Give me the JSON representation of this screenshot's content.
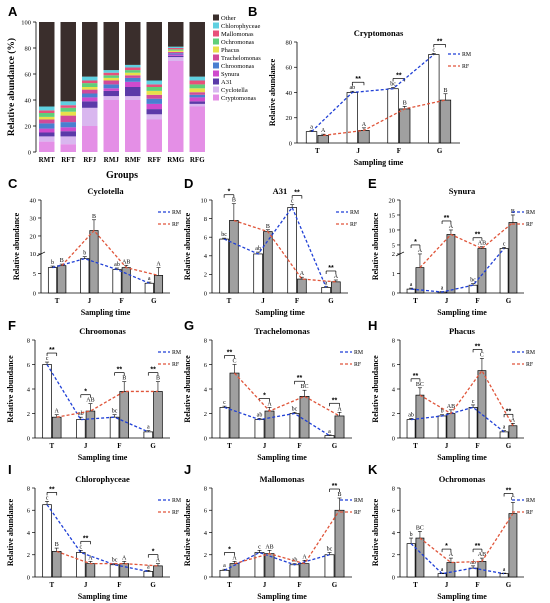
{
  "colors": {
    "rm": "#1f3fd6",
    "rf": "#e0553a",
    "bar_rm": "#ffffff",
    "bar_rf": "#a0a0a0"
  },
  "legend_small": [
    "RM",
    "RF"
  ],
  "chart_data": [
    {
      "panel": "A",
      "type": "bar",
      "stacked": true,
      "categories": [
        "RMT",
        "RFT",
        "RFJ",
        "RMJ",
        "RMF",
        "RFF",
        "RMG",
        "RFG"
      ],
      "xlabel": "Groups",
      "ylabel": "Relative abundance (%)",
      "ylim": [
        0,
        100
      ],
      "yticks": [
        0,
        20,
        40,
        60,
        80,
        100
      ],
      "series": [
        {
          "name": "Cryptomonas",
          "color": "#e48fe6",
          "values": [
            8,
            6,
            20,
            40,
            40,
            25,
            70,
            35
          ]
        },
        {
          "name": "Cyclotella",
          "color": "#d9b7ef",
          "values": [
            4,
            6,
            14,
            3,
            3,
            4,
            3,
            2
          ]
        },
        {
          "name": "A31",
          "color": "#5b3aa8",
          "values": [
            3,
            4,
            5,
            4,
            7,
            4,
            1,
            2
          ]
        },
        {
          "name": "Synura",
          "color": "#cf4acd",
          "values": [
            3,
            3,
            3,
            2,
            4,
            4,
            1,
            3
          ]
        },
        {
          "name": "Chroomonas",
          "color": "#4a7fd0",
          "values": [
            4,
            4,
            3,
            3,
            3,
            4,
            1,
            2
          ]
        },
        {
          "name": "Trachelomonas",
          "color": "#d04a9a",
          "values": [
            3,
            5,
            3,
            3,
            2,
            3,
            1,
            2
          ]
        },
        {
          "name": "Phacus",
          "color": "#e8e04a",
          "values": [
            2,
            3,
            2,
            2,
            2,
            3,
            1,
            3
          ]
        },
        {
          "name": "Ochromonas",
          "color": "#5fcf7a",
          "values": [
            3,
            3,
            3,
            2,
            2,
            3,
            1,
            3
          ]
        },
        {
          "name": "Mallomonas",
          "color": "#e8507a",
          "values": [
            2,
            2,
            2,
            2,
            2,
            2,
            1,
            3
          ]
        },
        {
          "name": "Chlorophyceae",
          "color": "#5fd0e0",
          "values": [
            3,
            3,
            3,
            2,
            2,
            3,
            1,
            3
          ]
        },
        {
          "name": "Other",
          "color": "#3a2e2c",
          "values": [
            65,
            61,
            42,
            37,
            33,
            45,
            19,
            42
          ]
        }
      ]
    },
    {
      "panel": "B",
      "type": "bar",
      "title": "Cryptomonas",
      "categories": [
        "T",
        "J",
        "F",
        "G"
      ],
      "xlabel": "Sampling time",
      "ylabel": "Relative abundance",
      "ylim": [
        0,
        80
      ],
      "yticks": [
        0,
        20,
        40,
        60,
        80
      ],
      "series": [
        {
          "name": "RM",
          "values": [
            9,
            40,
            43,
            70
          ],
          "err": [
            1,
            1,
            1,
            1
          ]
        },
        {
          "name": "RF",
          "values": [
            6,
            10,
            27,
            34
          ],
          "err": [
            1,
            2,
            2,
            5
          ]
        }
      ],
      "letters_rm": [
        "a",
        "ab",
        "bc",
        "c"
      ],
      "letters_rf": [
        "A",
        "A",
        "B",
        "B"
      ],
      "sig": [
        "",
        "**",
        "**",
        "**"
      ],
      "sig_over_rm": false
    },
    {
      "panel": "C",
      "type": "bar",
      "title": "Cyclotella",
      "categories": [
        "T",
        "J",
        "F",
        "G"
      ],
      "xlabel": "Sampling time",
      "ylabel": "Relative abundance",
      "ylim": [
        0,
        40
      ],
      "yticks": [
        0,
        10,
        20,
        30,
        40
      ],
      "broken_axis": true,
      "ylim_low": [
        0,
        10
      ],
      "yticks_low": [
        0,
        5,
        10
      ],
      "ylim_high": [
        10,
        40
      ],
      "yticks_high": [
        20,
        30,
        40
      ],
      "series": [
        {
          "name": "RM",
          "values": [
            6.5,
            8.8,
            6,
            2.5
          ],
          "err": [
            0.4,
            0.5,
            0.4,
            0.3
          ]
        },
        {
          "name": "RF",
          "values": [
            7,
            23,
            6.5,
            4.5
          ],
          "err": [
            0.4,
            6,
            0.6,
            2
          ]
        }
      ],
      "letters_rm": [
        "b",
        "b",
        "ab",
        "a"
      ],
      "letters_rf": [
        "B",
        "B",
        "AB",
        "A"
      ],
      "sig": [
        "",
        "",
        "",
        ""
      ],
      "sig_over_rm": false
    },
    {
      "panel": "D",
      "type": "bar",
      "title": "A31",
      "categories": [
        "T",
        "J",
        "F",
        "G"
      ],
      "xlabel": "Sampling time",
      "ylabel": "Relative abundance",
      "ylim": [
        0,
        10
      ],
      "yticks": [
        0,
        2,
        4,
        6,
        8,
        10
      ],
      "series": [
        {
          "name": "RM",
          "values": [
            5.8,
            4.2,
            9.2,
            0.6
          ],
          "err": [
            0.1,
            0.2,
            0.3,
            0.1
          ]
        },
        {
          "name": "RF",
          "values": [
            7.8,
            6.6,
            1.5,
            1.2
          ],
          "err": [
            1.8,
            0.2,
            0.2,
            0.2
          ]
        }
      ],
      "letters_rm": [
        "bc",
        "ab",
        "c",
        "a"
      ],
      "letters_rf": [
        "B",
        "B",
        "A",
        "A"
      ],
      "sig": [
        "*",
        "",
        "**",
        "**"
      ],
      "sig_over_rm": false
    },
    {
      "panel": "E",
      "type": "bar",
      "title": "Synura",
      "categories": [
        "T",
        "J",
        "F",
        "G"
      ],
      "xlabel": "Sampling time",
      "ylabel": "Relative abundance",
      "ylim": [
        0,
        20
      ],
      "yticks": [
        0,
        5,
        10,
        15,
        20
      ],
      "broken_axis": true,
      "ylim_low": [
        0,
        2
      ],
      "yticks_low": [
        0,
        1,
        2
      ],
      "ylim_high": [
        2,
        20
      ],
      "yticks_high": [
        5,
        10,
        15,
        20
      ],
      "series": [
        {
          "name": "RM",
          "values": [
            0.2,
            0.05,
            0.4,
            3.8
          ],
          "err": [
            0.05,
            0.02,
            0.08,
            0.4
          ]
        },
        {
          "name": "RF",
          "values": [
            1.3,
            8.5,
            3.8,
            12.5
          ],
          "err": [
            0.7,
            1.5,
            0.6,
            2.5
          ]
        }
      ],
      "letters_rm": [
        "a",
        "a",
        "bc",
        "c"
      ],
      "letters_rf": [
        "A",
        "A",
        "AB",
        "B"
      ],
      "sig": [
        "*",
        "**",
        "**",
        ""
      ],
      "sig_over_rm": false
    },
    {
      "panel": "F",
      "type": "bar",
      "title": "Chroomonas",
      "categories": [
        "T",
        "J",
        "F",
        "G"
      ],
      "xlabel": "Sampling time",
      "ylabel": "Relative abundance",
      "ylim": [
        0,
        8
      ],
      "yticks": [
        0,
        2,
        4,
        6,
        8
      ],
      "series": [
        {
          "name": "RM",
          "values": [
            6,
            1.5,
            1.7,
            0.5
          ],
          "err": [
            0.2,
            0.2,
            0.2,
            0.1
          ]
        },
        {
          "name": "RF",
          "values": [
            1.7,
            2.2,
            3.8,
            3.8
          ],
          "err": [
            0.2,
            0.6,
            0.8,
            0.8
          ]
        }
      ],
      "letters_rm": [
        "c",
        "ab",
        "bc",
        "a"
      ],
      "letters_rf": [
        "A",
        "AB",
        "B",
        "B"
      ],
      "sig": [
        "**",
        "*",
        "**",
        "**"
      ],
      "sig_over_rm": false
    },
    {
      "panel": "G",
      "type": "bar",
      "title": "Trachelomonas",
      "categories": [
        "T",
        "J",
        "F",
        "G"
      ],
      "xlabel": "Sampling time",
      "ylabel": "Relative abundance",
      "ylim": [
        0,
        8
      ],
      "yticks": [
        0,
        2,
        4,
        6,
        8
      ],
      "series": [
        {
          "name": "RM",
          "values": [
            2.5,
            1.5,
            2.0,
            0.2
          ],
          "err": [
            0.1,
            0.1,
            0.1,
            0.05
          ]
        },
        {
          "name": "RF",
          "values": [
            5.3,
            2.2,
            3.4,
            1.8
          ],
          "err": [
            0.7,
            0.3,
            0.5,
            0.3
          ]
        }
      ],
      "letters_rm": [
        "c",
        "ab",
        "bc",
        "a"
      ],
      "letters_rf": [
        "C",
        "A",
        "BC",
        "A"
      ],
      "sig": [
        "**",
        "*",
        "**",
        "**"
      ],
      "sig_over_rm": false
    },
    {
      "panel": "H",
      "type": "bar",
      "title": "Phacus",
      "categories": [
        "T",
        "J",
        "F",
        "G"
      ],
      "xlabel": "Sampling time",
      "ylabel": "Relative abundance",
      "ylim": [
        0,
        8
      ],
      "yticks": [
        0,
        2,
        4,
        6,
        8
      ],
      "series": [
        {
          "name": "RM",
          "values": [
            1.5,
            1.8,
            2.5,
            0.5
          ],
          "err": [
            0.1,
            0.1,
            0.2,
            0.1
          ]
        },
        {
          "name": "RF",
          "values": [
            3.5,
            2.0,
            5.5,
            1.0
          ],
          "err": [
            0.6,
            0.3,
            1.0,
            0.2
          ]
        }
      ],
      "letters_rm": [
        "ab",
        "b",
        "c",
        "a"
      ],
      "letters_rf": [
        "BC",
        "AB",
        "C",
        "A"
      ],
      "sig": [
        "**",
        "",
        "**",
        "**"
      ],
      "sig_over_rm": false
    },
    {
      "panel": "I",
      "type": "bar",
      "title": "Chlorophyceae",
      "categories": [
        "T",
        "J",
        "F",
        "G"
      ],
      "xlabel": "Sampling time",
      "ylabel": "Relative abundance",
      "ylim": [
        0,
        8
      ],
      "yticks": [
        0,
        2,
        4,
        6,
        8
      ],
      "series": [
        {
          "name": "RM",
          "values": [
            6.5,
            2.2,
            1.1,
            0.5
          ],
          "err": [
            0.3,
            0.2,
            0.1,
            0.1
          ]
        },
        {
          "name": "RF",
          "values": [
            2.3,
            1.2,
            1.2,
            1.0
          ],
          "err": [
            0.3,
            0.2,
            0.2,
            0.2
          ]
        }
      ],
      "letters_rm": [
        "c",
        "c",
        "bc",
        "a"
      ],
      "letters_rf": [
        "B",
        "A",
        "A",
        "A"
      ],
      "sig": [
        "**",
        "**",
        "",
        "*"
      ],
      "sig_over_rm": true
    },
    {
      "panel": "J",
      "type": "bar",
      "title": "Mallomonas",
      "categories": [
        "T",
        "J",
        "F",
        "G"
      ],
      "xlabel": "Sampling time",
      "ylabel": "Relative abundance",
      "ylim": [
        0,
        8
      ],
      "yticks": [
        0,
        2,
        4,
        6,
        8
      ],
      "series": [
        {
          "name": "RM",
          "values": [
            0.6,
            2.2,
            1.1,
            2.0
          ],
          "err": [
            0.1,
            0.2,
            0.1,
            0.2
          ]
        },
        {
          "name": "RF",
          "values": [
            1.2,
            2.1,
            1.2,
            6.0
          ],
          "err": [
            0.2,
            0.3,
            0.3,
            1.1
          ]
        }
      ],
      "letters_rm": [
        "a",
        "c",
        "ab",
        "bc"
      ],
      "letters_rf": [
        "A",
        "AB",
        "A",
        "B"
      ],
      "sig": [
        "*",
        "",
        "",
        "**"
      ],
      "sig_over_rm": false
    },
    {
      "panel": "K",
      "type": "bar",
      "title": "Ochromonas",
      "categories": [
        "T",
        "J",
        "F",
        "G"
      ],
      "xlabel": "Sampling time",
      "ylabel": "Relative abundance",
      "ylim": [
        0,
        8
      ],
      "yticks": [
        0,
        2,
        4,
        6,
        8
      ],
      "series": [
        {
          "name": "RM",
          "values": [
            3.0,
            0.3,
            0.8,
            0.3
          ],
          "err": [
            0.5,
            0.05,
            0.2,
            0.05
          ]
        },
        {
          "name": "RF",
          "values": [
            3.5,
            1.3,
            1.4,
            5.7
          ],
          "err": [
            0.6,
            0.4,
            0.3,
            1.0
          ]
        }
      ],
      "letters_rm": [
        "b",
        "a",
        "ab",
        "a"
      ],
      "letters_rf": [
        "BC",
        "A",
        "AB",
        "C"
      ],
      "sig": [
        "",
        "*",
        "**",
        "**"
      ],
      "sig_over_rm": false
    }
  ]
}
